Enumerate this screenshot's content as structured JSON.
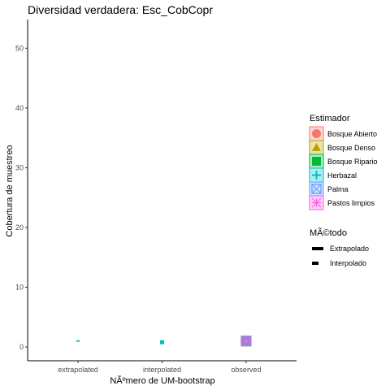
{
  "chart_data": {
    "type": "scatter",
    "title": "Diversidad verdadera: Esc_CobCopr",
    "xlabel": "NÃºmero de UM-bootstrap",
    "ylabel": "Cobertura de muestreo",
    "categories": [
      "extrapolated",
      "interpolated",
      "observed"
    ],
    "yticks": [
      0,
      10,
      20,
      30,
      40,
      50
    ],
    "ylim": [
      -2.3,
      54.8
    ],
    "grid": false,
    "legend_position": "right",
    "series": [
      {
        "name": "Bosque Abierto",
        "color": "#F8766D",
        "shape": "circle",
        "points": [
          {
            "x": "observed",
            "y": 1
          }
        ]
      },
      {
        "name": "Bosque Denso",
        "color": "#B79F00",
        "shape": "triangle",
        "points": [
          {
            "x": "observed",
            "y": 1
          }
        ]
      },
      {
        "name": "Bosque Ripario",
        "color": "#00BA38",
        "shape": "square",
        "points": [
          {
            "x": "observed",
            "y": 1
          }
        ]
      },
      {
        "name": "Herbazal",
        "color": "#00BFC4",
        "shape": "plus",
        "points": [
          {
            "x": "extrapolated",
            "y": 1
          },
          {
            "x": "interpolated",
            "y": 0.8
          },
          {
            "x": "observed",
            "y": 1
          }
        ]
      },
      {
        "name": "Palma",
        "color": "#619CFF",
        "shape": "square-x",
        "points": [
          {
            "x": "observed",
            "y": 1
          }
        ]
      },
      {
        "name": "Pastos limpios",
        "color": "#F564E3",
        "shape": "asterisk",
        "points": [
          {
            "x": "observed",
            "y": 1
          }
        ]
      }
    ],
    "linetype_legend": {
      "title": "MÃ©todo",
      "items": [
        {
          "label": "Extrapolado",
          "linetype": "solid"
        },
        {
          "label": "Interpolado",
          "linetype": "dashed"
        }
      ]
    },
    "color_legend_title": "Estimador"
  }
}
